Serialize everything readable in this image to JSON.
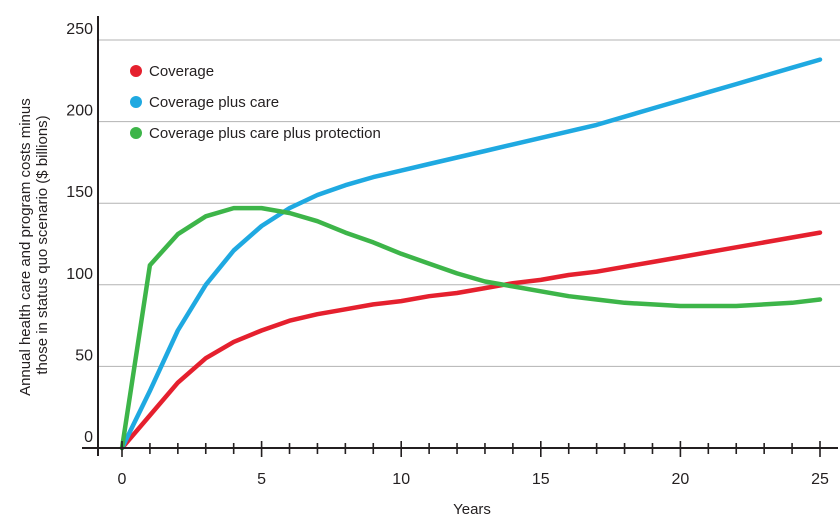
{
  "chart_data": {
    "type": "line",
    "title": "",
    "xlabel": "Years",
    "ylabel_lines": [
      "Annual health care and program costs minus",
      "those in status quo scenario ($ billions)"
    ],
    "xlim": [
      0,
      25
    ],
    "ylim": [
      0,
      250
    ],
    "grid": true,
    "legend_position": "top-left",
    "x_ticks": [
      0,
      5,
      10,
      15,
      20,
      25
    ],
    "y_ticks": [
      0,
      50,
      100,
      150,
      200,
      250
    ],
    "series": [
      {
        "name": "Coverage",
        "color": "#e5202e",
        "x": [
          0,
          1,
          2,
          3,
          4,
          5,
          6,
          7,
          8,
          9,
          10,
          11,
          12,
          13,
          14,
          15,
          16,
          17,
          18,
          19,
          20,
          21,
          22,
          23,
          24,
          25
        ],
        "y": [
          0,
          20,
          40,
          55,
          65,
          72,
          78,
          82,
          85,
          88,
          90,
          93,
          95,
          98,
          101,
          103,
          106,
          108,
          111,
          114,
          117,
          120,
          123,
          126,
          129,
          132
        ]
      },
      {
        "name": "Coverage plus care",
        "color": "#1fa9e1",
        "x": [
          0,
          1,
          2,
          3,
          4,
          5,
          6,
          7,
          8,
          9,
          10,
          11,
          12,
          13,
          14,
          15,
          16,
          17,
          18,
          19,
          20,
          21,
          22,
          23,
          24,
          25
        ],
        "y": [
          0,
          35,
          72,
          100,
          121,
          136,
          147,
          155,
          161,
          166,
          170,
          174,
          178,
          182,
          186,
          190,
          194,
          198,
          203,
          208,
          213,
          218,
          223,
          228,
          233,
          238
        ]
      },
      {
        "name": "Coverage plus care plus protection",
        "color": "#3db549",
        "x": [
          0,
          1,
          2,
          3,
          4,
          5,
          6,
          7,
          8,
          9,
          10,
          11,
          12,
          13,
          14,
          15,
          16,
          17,
          18,
          19,
          20,
          21,
          22,
          23,
          24,
          25
        ],
        "y": [
          0,
          112,
          131,
          142,
          147,
          147,
          144,
          139,
          132,
          126,
          119,
          113,
          107,
          102,
          99,
          96,
          93,
          91,
          89,
          88,
          87,
          87,
          87,
          88,
          89,
          91
        ]
      }
    ]
  }
}
